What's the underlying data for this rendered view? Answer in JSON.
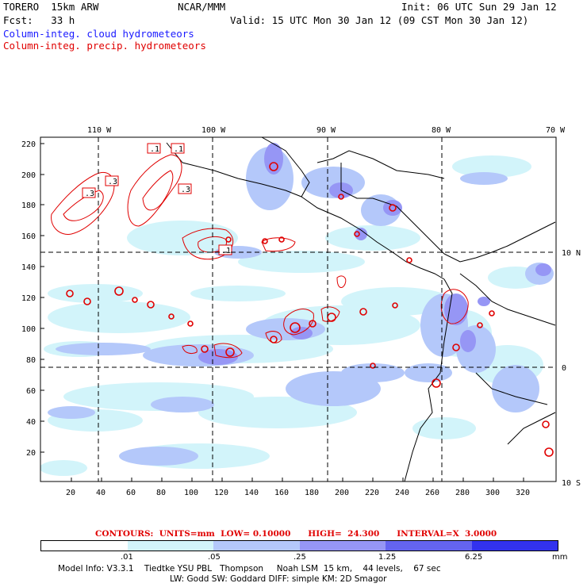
{
  "header": {
    "model": "TORERO  15km ARW",
    "org": "NCAR/MMM",
    "init": "Init: 06 UTC Sun 29 Jan 12",
    "fcst": "Fcst:   33 h",
    "valid": "Valid: 15 UTC Mon 30 Jan 12 (09 CST Mon 30 Jan 12)",
    "field1": "Column-integ. cloud hydrometeors",
    "field2": "Column-integ. precip. hydrometeors"
  },
  "map": {
    "top_lon_labels": [
      "110 W",
      "100 W",
      "90 W",
      "80 W",
      "70 W"
    ],
    "right_lat_labels": [
      "10 N",
      "0",
      "10 S"
    ],
    "left_grid_labels": [
      "220",
      "200",
      "180",
      "160",
      "140",
      "120",
      "100",
      "80",
      "60",
      "40",
      "20"
    ],
    "bottom_grid_labels": [
      "20",
      "40",
      "60",
      "80",
      "100",
      "120",
      "140",
      "160",
      "180",
      "200",
      "220",
      "240",
      "260",
      "280",
      "300",
      "320"
    ],
    "contour_labels": [
      ".1",
      ".1",
      ".3",
      ".3",
      ".3",
      ".1"
    ]
  },
  "contour_info": "CONTOURS:  UNITS=mm  LOW= 0.10000      HIGH=  24.300      INTERVAL=X  3.0000",
  "colorbar": {
    "labels": [
      ".01",
      ".05",
      ".25",
      "1.25",
      "6.25",
      "mm"
    ],
    "colors": [
      "#ffffff",
      "#d2f4fa",
      "#b4c8fa",
      "#9696f5",
      "#6464f0",
      "#3232ee",
      "#1414ee"
    ]
  },
  "model_info": {
    "line1": "Model Info: V3.3.1    Tiedtke YSU PBL   Thompson     Noah LSM  15 km,    44 levels,    67 sec",
    "line2": "LW: Godd SW: Goddard DIFF: simple KM: 2D Smagor"
  }
}
